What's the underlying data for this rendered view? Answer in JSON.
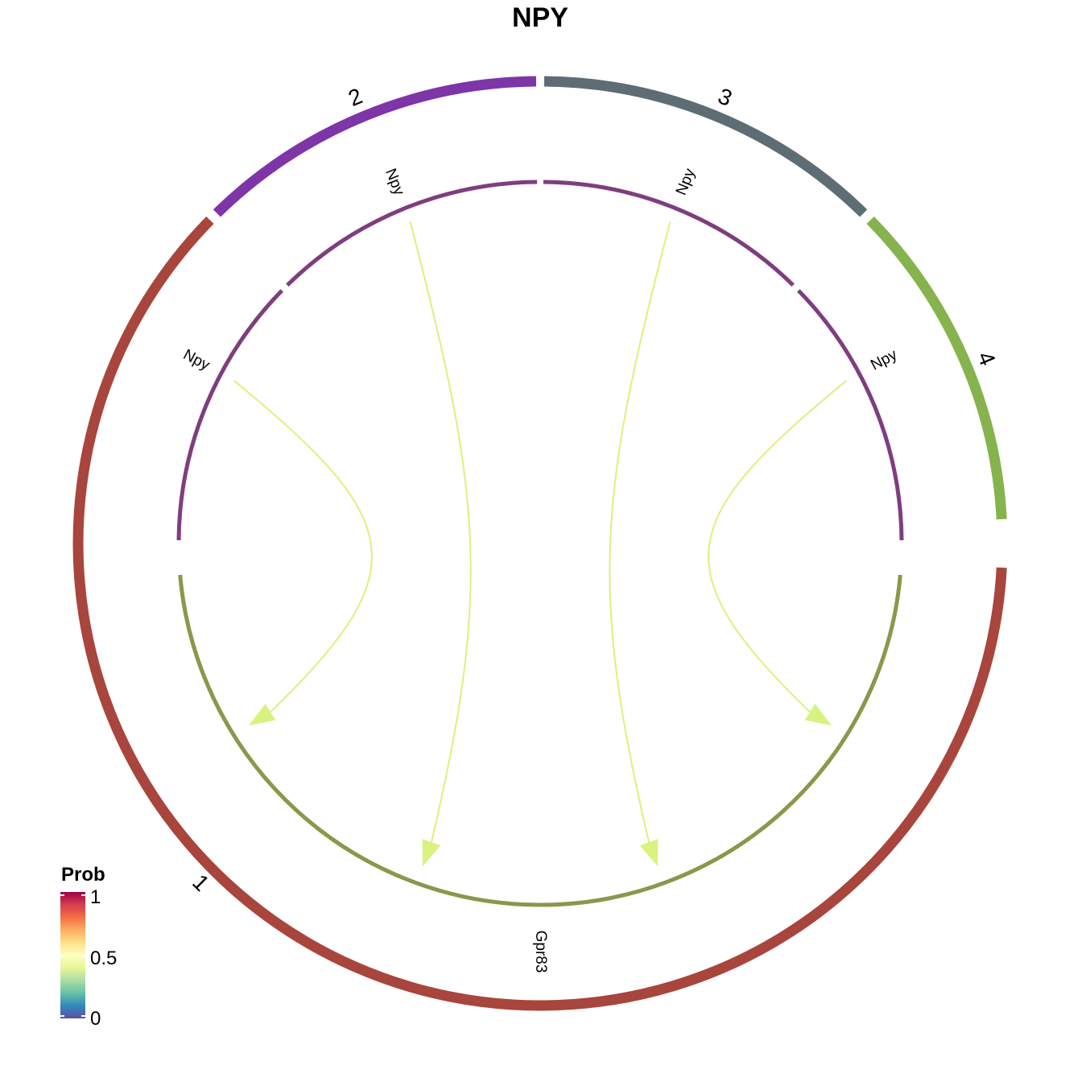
{
  "chart_data": {
    "type": "chord",
    "title": "NPY",
    "groups": [
      {
        "name": "1",
        "color": "#A8453C"
      },
      {
        "name": "2",
        "color": "#7E35A8"
      },
      {
        "name": "3",
        "color": "#5E6C74"
      },
      {
        "name": "4",
        "color": "#86B34D"
      }
    ],
    "ligand_color": "#7E3E7E",
    "receptor_color": "#89984A",
    "links": [
      {
        "source_group": "1",
        "ligand": "Npy",
        "target_group": "1",
        "receptor": "Gpr83",
        "prob": 0.55
      },
      {
        "source_group": "2",
        "ligand": "Npy",
        "target_group": "1",
        "receptor": "Gpr83",
        "prob": 0.55
      },
      {
        "source_group": "3",
        "ligand": "Npy",
        "target_group": "1",
        "receptor": "Gpr83",
        "prob": 0.55
      },
      {
        "source_group": "4",
        "ligand": "Npy",
        "target_group": "1",
        "receptor": "Gpr83",
        "prob": 0.55
      }
    ],
    "link_color": "#D9F27F",
    "legend": {
      "title": "Prob",
      "ticks": [
        "1",
        "0.5",
        "0"
      ],
      "colors": [
        "#9E0142",
        "#D53E4F",
        "#F46D43",
        "#FDAE61",
        "#FEE08B",
        "#FFFFBF",
        "#E6F598",
        "#ABDDA4",
        "#66C2A5",
        "#3288BD",
        "#5E4FA2"
      ],
      "placement": "bottom-left"
    }
  }
}
